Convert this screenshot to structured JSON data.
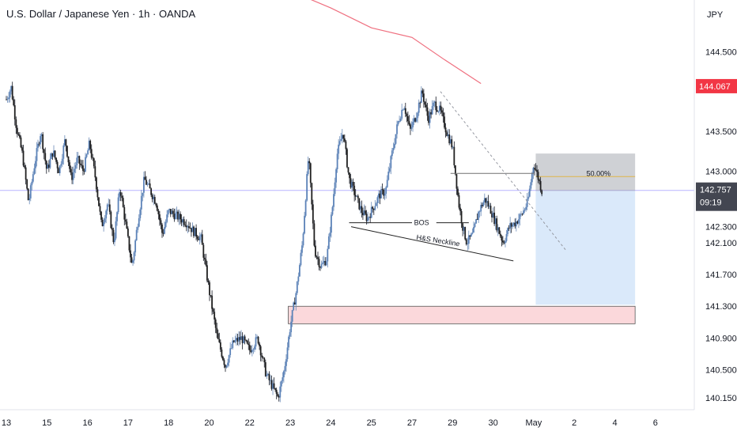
{
  "header": {
    "title": "U.S. Dollar / Japanese Yen · 1h · OANDA"
  },
  "chart_data": {
    "type": "candlestick",
    "currency": "JPY",
    "ylim": [
      140.0,
      145.15
    ],
    "xlim": [
      0,
      20.9
    ],
    "y_ticks": [
      {
        "v": 144.5,
        "label": "144.500"
      },
      {
        "v": 144.067,
        "label": "144.067"
      },
      {
        "v": 143.5,
        "label": "143.500"
      },
      {
        "v": 143.0,
        "label": "143.000"
      },
      {
        "v": 142.3,
        "label": "142.300"
      },
      {
        "v": 142.1,
        "label": "142.100"
      },
      {
        "v": 141.7,
        "label": "141.700"
      },
      {
        "v": 141.3,
        "label": "141.300"
      },
      {
        "v": 140.9,
        "label": "140.900"
      },
      {
        "v": 140.5,
        "label": "140.500"
      },
      {
        "v": 140.15,
        "label": "140.150"
      }
    ],
    "x_ticks": [
      {
        "t": 0,
        "label": "13"
      },
      {
        "t": 1,
        "label": "15"
      },
      {
        "t": 2,
        "label": "16"
      },
      {
        "t": 3,
        "label": "17"
      },
      {
        "t": 4,
        "label": "18"
      },
      {
        "t": 5,
        "label": "20"
      },
      {
        "t": 6,
        "label": "22"
      },
      {
        "t": 7,
        "label": "23"
      },
      {
        "t": 8,
        "label": "24"
      },
      {
        "t": 9,
        "label": "25"
      },
      {
        "t": 10,
        "label": "27"
      },
      {
        "t": 11,
        "label": "29"
      },
      {
        "t": 12,
        "label": "30"
      },
      {
        "t": 13,
        "label": "May"
      },
      {
        "t": 14,
        "label": "2"
      },
      {
        "t": 15,
        "label": "4"
      },
      {
        "t": 16,
        "label": "6"
      }
    ],
    "current_price": {
      "value": 142.757,
      "label": "142.757",
      "countdown": "09:19"
    },
    "ma_price_label": {
      "value": 144.067,
      "label": "144.067"
    },
    "price_path": [
      [
        0,
        143.9
      ],
      [
        0.12,
        144.05
      ],
      [
        0.25,
        143.55
      ],
      [
        0.4,
        143.2
      ],
      [
        0.55,
        142.6
      ],
      [
        0.7,
        143.1
      ],
      [
        0.85,
        143.5
      ],
      [
        1.0,
        143.0
      ],
      [
        1.15,
        143.25
      ],
      [
        1.3,
        143.0
      ],
      [
        1.45,
        143.4
      ],
      [
        1.6,
        142.9
      ],
      [
        1.75,
        143.15
      ],
      [
        1.9,
        143.0
      ],
      [
        2.05,
        143.35
      ],
      [
        2.2,
        142.9
      ],
      [
        2.35,
        142.3
      ],
      [
        2.5,
        142.6
      ],
      [
        2.65,
        142.1
      ],
      [
        2.8,
        142.8
      ],
      [
        2.95,
        142.3
      ],
      [
        3.1,
        141.8
      ],
      [
        3.25,
        142.4
      ],
      [
        3.4,
        142.9
      ],
      [
        3.55,
        142.75
      ],
      [
        3.7,
        142.6
      ],
      [
        3.85,
        142.2
      ],
      [
        4.0,
        142.5
      ],
      [
        4.15,
        142.45
      ],
      [
        4.3,
        142.4
      ],
      [
        4.45,
        142.35
      ],
      [
        4.6,
        142.25
      ],
      [
        4.8,
        142.15
      ],
      [
        5.0,
        141.5
      ],
      [
        5.2,
        140.9
      ],
      [
        5.4,
        140.55
      ],
      [
        5.6,
        140.85
      ],
      [
        5.8,
        140.9
      ],
      [
        6.0,
        140.75
      ],
      [
        6.2,
        140.9
      ],
      [
        6.4,
        140.45
      ],
      [
        6.55,
        140.3
      ],
      [
        6.7,
        140.15
      ],
      [
        6.85,
        140.5
      ],
      [
        7.0,
        141.05
      ],
      [
        7.15,
        141.5
      ],
      [
        7.3,
        142.1
      ],
      [
        7.45,
        143.2
      ],
      [
        7.6,
        142.0
      ],
      [
        7.75,
        141.8
      ],
      [
        7.9,
        141.9
      ],
      [
        8.05,
        142.6
      ],
      [
        8.15,
        143.2
      ],
      [
        8.3,
        143.5
      ],
      [
        8.45,
        142.9
      ],
      [
        8.6,
        142.7
      ],
      [
        8.75,
        142.5
      ],
      [
        8.9,
        142.4
      ],
      [
        9.05,
        142.55
      ],
      [
        9.2,
        142.7
      ],
      [
        9.35,
        142.75
      ],
      [
        9.5,
        143.2
      ],
      [
        9.65,
        143.6
      ],
      [
        9.8,
        143.85
      ],
      [
        9.95,
        143.5
      ],
      [
        10.1,
        143.7
      ],
      [
        10.25,
        144.0
      ],
      [
        10.4,
        143.65
      ],
      [
        10.55,
        143.85
      ],
      [
        10.7,
        143.75
      ],
      [
        10.85,
        143.5
      ],
      [
        11.0,
        143.3
      ],
      [
        11.15,
        142.6
      ],
      [
        11.25,
        142.3
      ],
      [
        11.35,
        142.1
      ],
      [
        11.5,
        142.2
      ],
      [
        11.65,
        142.5
      ],
      [
        11.8,
        142.65
      ],
      [
        11.95,
        142.5
      ],
      [
        12.1,
        142.3
      ],
      [
        12.25,
        142.1
      ],
      [
        12.4,
        142.3
      ],
      [
        12.55,
        142.35
      ],
      [
        12.7,
        142.45
      ],
      [
        12.85,
        142.6
      ],
      [
        13.0,
        143.1
      ],
      [
        13.12,
        142.9
      ],
      [
        13.2,
        142.75
      ]
    ],
    "moving_average": [
      [
        7.3,
        145.2
      ],
      [
        8.0,
        145.05
      ],
      [
        9.0,
        144.8
      ],
      [
        10.0,
        144.68
      ],
      [
        10.8,
        144.4
      ],
      [
        11.7,
        144.1
      ]
    ],
    "annotations": {
      "fib_label": "50.00%",
      "bos_label": "BOS",
      "neckline_label": "H&S Neckline"
    }
  }
}
